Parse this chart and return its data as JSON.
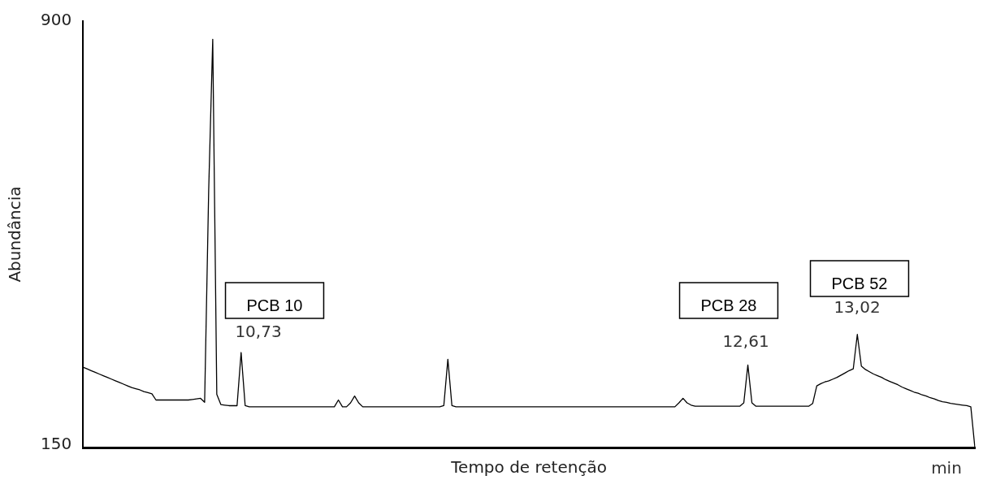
{
  "chart_data": {
    "type": "line",
    "xlabel": "Tempo de retenção",
    "ylabel": "Abundância",
    "categories": [
      null,
      null,
      null,
      null,
      null,
      null,
      null,
      null,
      null,
      null,
      null,
      null,
      null,
      null,
      null,
      null,
      null,
      null,
      null,
      null,
      null,
      null,
      null,
      null,
      null,
      null,
      null,
      null,
      null,
      null,
      null,
      null,
      null,
      null,
      null,
      null,
      null,
      null,
      null,
      null,
      null,
      null,
      null,
      null,
      null,
      null,
      null,
      null,
      null,
      null,
      null,
      null,
      null,
      null,
      null,
      null,
      null,
      null,
      null,
      null,
      null,
      null,
      null,
      null,
      null,
      null,
      null,
      null,
      null,
      null,
      null,
      null,
      null,
      null,
      null,
      null,
      null,
      null,
      null,
      null,
      null,
      null,
      null,
      null,
      null,
      null,
      null,
      null,
      null,
      null,
      null,
      null,
      null,
      null,
      null,
      null,
      null,
      null,
      null,
      null,
      null,
      null,
      null,
      null,
      null,
      null,
      null,
      null,
      null,
      null,
      null,
      null,
      null,
      null,
      null,
      null,
      null,
      null,
      null,
      null,
      null,
      null,
      null,
      null,
      null,
      null,
      null,
      null,
      null,
      null,
      null,
      null,
      null,
      null,
      null,
      null,
      null,
      null,
      null,
      null,
      null,
      null,
      null,
      null,
      null,
      null,
      null,
      null,
      null,
      null,
      null,
      null,
      null,
      null,
      null,
      null,
      null,
      null,
      null,
      null,
      null,
      null,
      null,
      null,
      null,
      null,
      null,
      null,
      null,
      null,
      null,
      null,
      null,
      null,
      null,
      null,
      null,
      null,
      null,
      null,
      null,
      null,
      null,
      null,
      null,
      null,
      null,
      null,
      null,
      null,
      null,
      null,
      null,
      null,
      null,
      null,
      null,
      null,
      null,
      null,
      null,
      null,
      null,
      null,
      null,
      null,
      null,
      null,
      null,
      null,
      null,
      null,
      null,
      null,
      null,
      null,
      null,
      null,
      null,
      null,
      null
    ],
    "ylim": [
      146,
      900
    ],
    "yticks": [
      150,
      900
    ],
    "tick_labels": "y",
    "grid": false,
    "legend": false,
    "marker": "none",
    "line_style": "solid",
    "series": [
      {
        "color": "#000000",
        "values": [
          288,
          285,
          282,
          279,
          276,
          273,
          270,
          267,
          264,
          261,
          258,
          255,
          252,
          250,
          248,
          245,
          243,
          241,
          230,
          230,
          230,
          230,
          230,
          230,
          230,
          230,
          230,
          231,
          232,
          233,
          226,
          600,
          868,
          240,
          222,
          221,
          220,
          220,
          220,
          314,
          220,
          218,
          218,
          218,
          218,
          218,
          218,
          218,
          218,
          218,
          218,
          218,
          218,
          218,
          218,
          218,
          218,
          218,
          218,
          218,
          218,
          218,
          218,
          230,
          218,
          218,
          225,
          237,
          225,
          218,
          218,
          218,
          218,
          218,
          218,
          218,
          218,
          218,
          218,
          218,
          218,
          218,
          218,
          218,
          218,
          218,
          218,
          218,
          218,
          220,
          302,
          220,
          218,
          218,
          218,
          218,
          218,
          218,
          218,
          218,
          218,
          218,
          218,
          218,
          218,
          218,
          218,
          218,
          218,
          218,
          218,
          218,
          218,
          218,
          218,
          218,
          218,
          218,
          218,
          218,
          218,
          218,
          218,
          218,
          218,
          218,
          218,
          218,
          218,
          218,
          218,
          218,
          218,
          218,
          218,
          218,
          218,
          218,
          218,
          218,
          218,
          218,
          218,
          218,
          218,
          218,
          218,
          225,
          233,
          225,
          221,
          219,
          219,
          219,
          219,
          219,
          219,
          219,
          219,
          219,
          219,
          219,
          219,
          225,
          292,
          225,
          219,
          219,
          219,
          219,
          219,
          219,
          219,
          219,
          219,
          219,
          219,
          219,
          219,
          219,
          224,
          255,
          259,
          262,
          264,
          267,
          270,
          274,
          278,
          282,
          285,
          346,
          290,
          284,
          280,
          276,
          273,
          270,
          266,
          263,
          260,
          257,
          253,
          250,
          247,
          244,
          242,
          239,
          237,
          234,
          232,
          229,
          227,
          226,
          224,
          223,
          222,
          221,
          220,
          218,
          146
        ]
      }
    ],
    "annotations": [
      "PCB 10",
      "10,73",
      "PCB 28",
      "12,61",
      "PCB 52",
      "13,02",
      "min"
    ]
  }
}
